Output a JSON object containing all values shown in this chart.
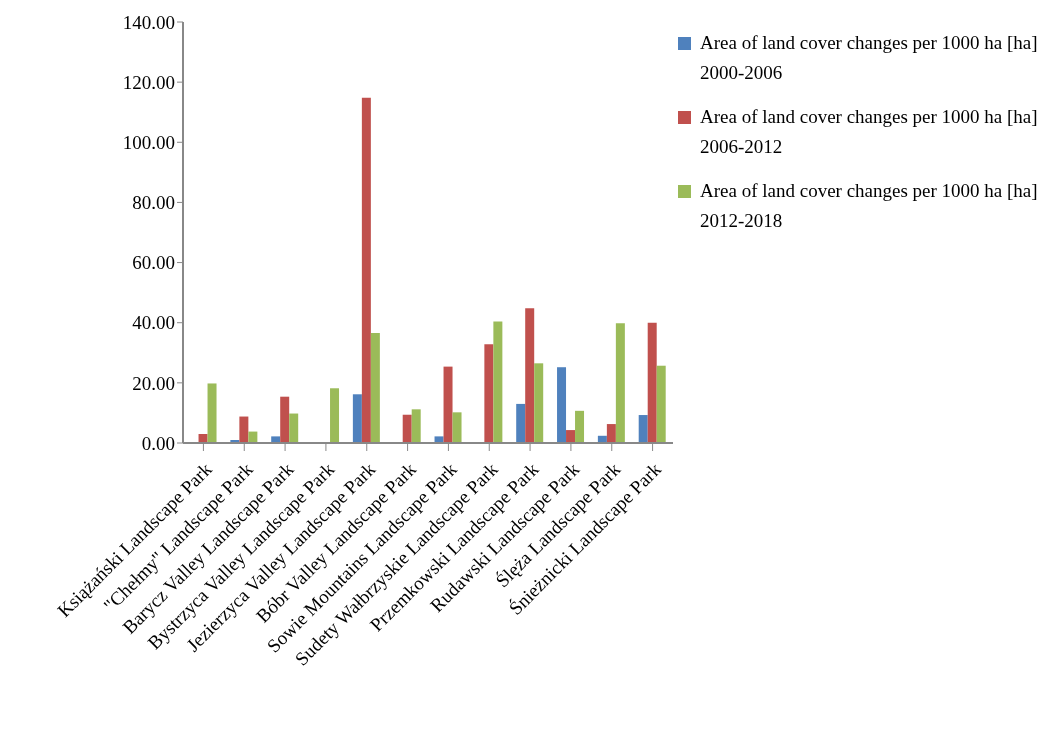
{
  "chart_data": {
    "type": "bar",
    "categories": [
      "Książański Landscape Park",
      "\"Chełmy\" Landscape Park",
      "Barycz Valley Landscape Park",
      "Bystrzyca Valley Landscape Park",
      "Jezierzyca Valley Landscape Park",
      "Bóbr Valley Landscape Park",
      "Sowie Mountains Landscape Park",
      "Sudety Wałbrzyskie Landscape Park",
      "Przemkowski Landscape Park",
      "Rudawski Landscape Park",
      "Ślęża Landscape Park",
      "Śnieżnicki Landscape Park"
    ],
    "series": [
      {
        "name": "Area of land cover changes per 1000 ha [ha] 2000-2006",
        "color": "#4f81bd",
        "values": [
          0,
          1,
          2.2,
          0,
          16.2,
          0,
          2.2,
          0,
          13,
          25.2,
          2.4,
          9.3
        ]
      },
      {
        "name": "Area of land cover changes per 1000 ha [ha] 2006-2012",
        "color": "#c0504d",
        "values": [
          3,
          8.8,
          15.4,
          0,
          114.8,
          9.4,
          25.4,
          32.8,
          44.8,
          4.3,
          6.3,
          40
        ]
      },
      {
        "name": "Area of land cover changes per 1000 ha [ha] 2012-2018",
        "color": "#9bbb59",
        "values": [
          19.8,
          3.8,
          9.8,
          18.2,
          36.6,
          11.2,
          10.2,
          40.4,
          26.5,
          10.7,
          39.8,
          25.7
        ]
      }
    ],
    "ylim": [
      0,
      140
    ],
    "yticks": [
      {
        "value": 0,
        "label": "0.00"
      },
      {
        "value": 20,
        "label": "20.00"
      },
      {
        "value": 40,
        "label": "40.00"
      },
      {
        "value": 60,
        "label": "60.00"
      },
      {
        "value": 80,
        "label": "80.00"
      },
      {
        "value": 100,
        "label": "100.00"
      },
      {
        "value": 120,
        "label": "120.00"
      },
      {
        "value": 140,
        "label": "140.00"
      }
    ],
    "grid": false,
    "legend": "top right"
  }
}
